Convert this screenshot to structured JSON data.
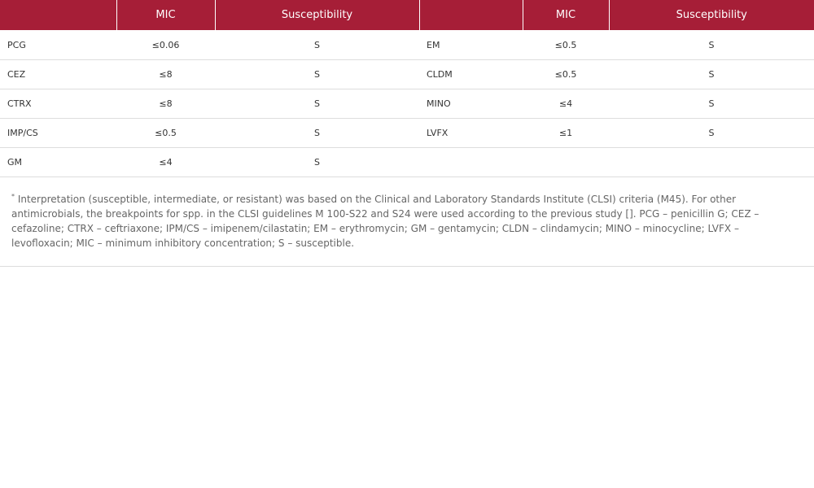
{
  "table": {
    "headers": [
      "",
      "MIC",
      "Susceptibility",
      "",
      "MIC",
      "Susceptibility"
    ],
    "rows": [
      [
        "PCG",
        "≤0.06",
        "S",
        "EM",
        "≤0.5",
        "S"
      ],
      [
        "CEZ",
        "≤8",
        "S",
        "CLDM",
        "≤0.5",
        "S"
      ],
      [
        "CTRX",
        "≤8",
        "S",
        "MINO",
        "≤4",
        "S"
      ],
      [
        "IMP/CS",
        "≤0.5",
        "S",
        "LVFX",
        "≤1",
        "S"
      ],
      [
        "GM",
        "≤4",
        "S",
        "",
        "",
        ""
      ]
    ]
  },
  "footnote": {
    "marker": "*",
    "text": "Interpretation (susceptible, intermediate, or resistant) was based on the Clinical and Laboratory Standards Institute (CLSI) criteria (M45). For other antimicrobials, the breakpoints for spp. in the CLSI guidelines M 100-S22 and S24 were used according to the previous study []. PCG – penicillin G; CEZ – cefazoline; CTRX – ceftriaxone; IPM/CS – imipenem/cilastatin; EM – erythromycin; GM – gentamycin; CLDN – clindamycin; MINO – minocycline; LVFX – levofloxacin; MIC – minimum inhibitory concentration; S – susceptible."
  },
  "colors": {
    "header_bg": "#a61e37",
    "header_text": "#ffffff",
    "row_border": "#dddddd"
  }
}
